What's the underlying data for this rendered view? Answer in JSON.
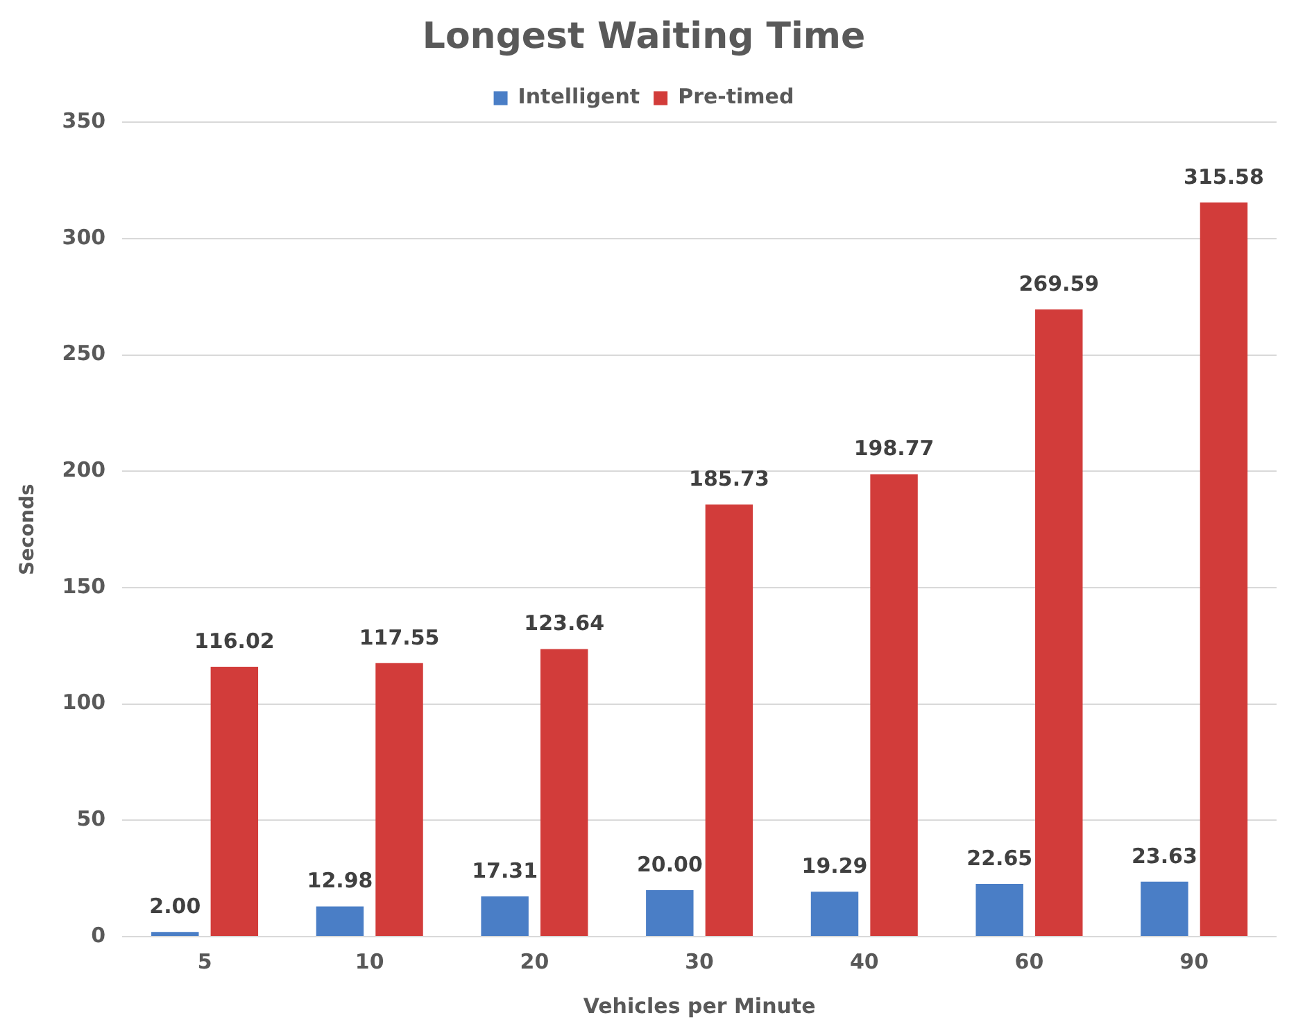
{
  "chart_data": {
    "type": "bar",
    "title": "Longest Waiting Time",
    "xlabel": "Vehicles per Minute",
    "ylabel": "Seconds",
    "categories": [
      "5",
      "10",
      "20",
      "30",
      "40",
      "60",
      "90"
    ],
    "series": [
      {
        "name": "Intelligent",
        "color": "#4a7ec6",
        "values": [
          2.0,
          12.98,
          17.31,
          20.0,
          19.29,
          22.65,
          23.63
        ],
        "value_labels": [
          "2.00",
          "12.98",
          "17.31",
          "20.00",
          "19.29",
          "22.65",
          "23.63"
        ]
      },
      {
        "name": "Pre-timed",
        "color": "#d23c3a",
        "values": [
          116.02,
          117.55,
          123.64,
          185.73,
          198.77,
          269.59,
          315.58
        ],
        "value_labels": [
          "116.02",
          "117.55",
          "123.64",
          "185.73",
          "198.77",
          "269.59",
          "315.58"
        ]
      }
    ],
    "ylim": [
      0,
      350
    ],
    "yticks": [
      0,
      50,
      100,
      150,
      200,
      250,
      300,
      350
    ],
    "grid": "y",
    "legend": "top"
  }
}
